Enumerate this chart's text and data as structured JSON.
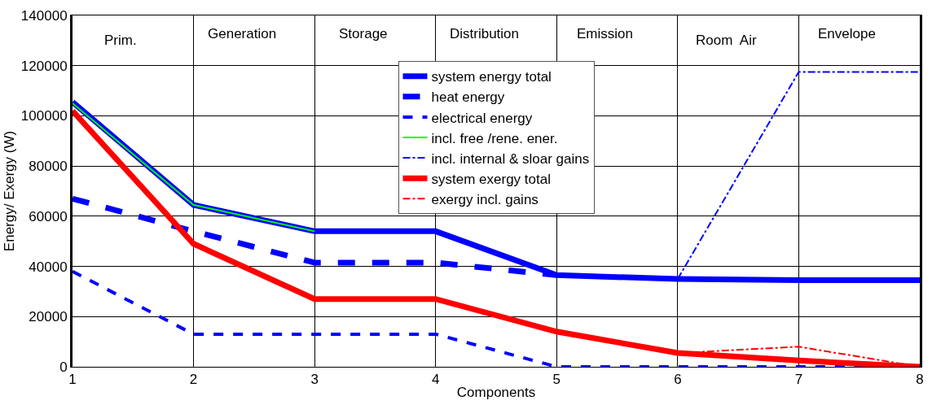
{
  "chart_data": {
    "type": "line",
    "xlabel": "Components",
    "ylabel": "Energy/ Exergy (W)",
    "x": [
      1,
      2,
      3,
      4,
      5,
      6,
      7,
      8
    ],
    "xlim": [
      1,
      8
    ],
    "xticks": [
      1,
      2,
      3,
      4,
      5,
      6,
      7,
      8
    ],
    "ylim": [
      0,
      140000
    ],
    "yticks": [
      0,
      20000,
      40000,
      60000,
      80000,
      100000,
      120000,
      140000
    ],
    "grid": true,
    "legend": "top",
    "marker": "none",
    "series": [
      {
        "name": "system energy total",
        "color": "#0000ff",
        "line_style": "solid",
        "values": [
          105500,
          64500,
          54000,
          54000,
          36500,
          35000,
          34500,
          34500
        ]
      },
      {
        "name": "heat energy",
        "color": "#0000ff",
        "line_style": "dashed",
        "values": [
          67000,
          54000,
          41500,
          41500,
          36500,
          null,
          null,
          null
        ]
      },
      {
        "name": "electrical energy",
        "color": "#0000ff",
        "line_style": "dashed",
        "values": [
          38000,
          13000,
          13000,
          13000,
          0,
          0,
          0,
          0
        ]
      },
      {
        "name": "incl. free /rene. ener.",
        "color": "#00ff00",
        "line_style": "solid",
        "values": [
          105000,
          64500,
          54000,
          null,
          null,
          null,
          null,
          null
        ]
      },
      {
        "name": "incl. internal & sloar gains",
        "color": "#0000ff",
        "line_style": "dashdot",
        "values": [
          null,
          null,
          null,
          null,
          null,
          35000,
          117500,
          117500
        ]
      },
      {
        "name": "system exergy total",
        "color": "#ff0000",
        "line_style": "solid",
        "values": [
          102000,
          49000,
          27000,
          27000,
          14000,
          5500,
          2500,
          0
        ]
      },
      {
        "name": "exergy incl. gains",
        "color": "#ff0000",
        "line_style": "dashdot",
        "values": [
          null,
          null,
          null,
          null,
          null,
          5500,
          8000,
          0
        ]
      }
    ],
    "annotations": [
      "Prim.",
      "Generation",
      "Storage",
      "Distribution",
      "Emission",
      "Room  Air",
      "Envelope"
    ]
  }
}
